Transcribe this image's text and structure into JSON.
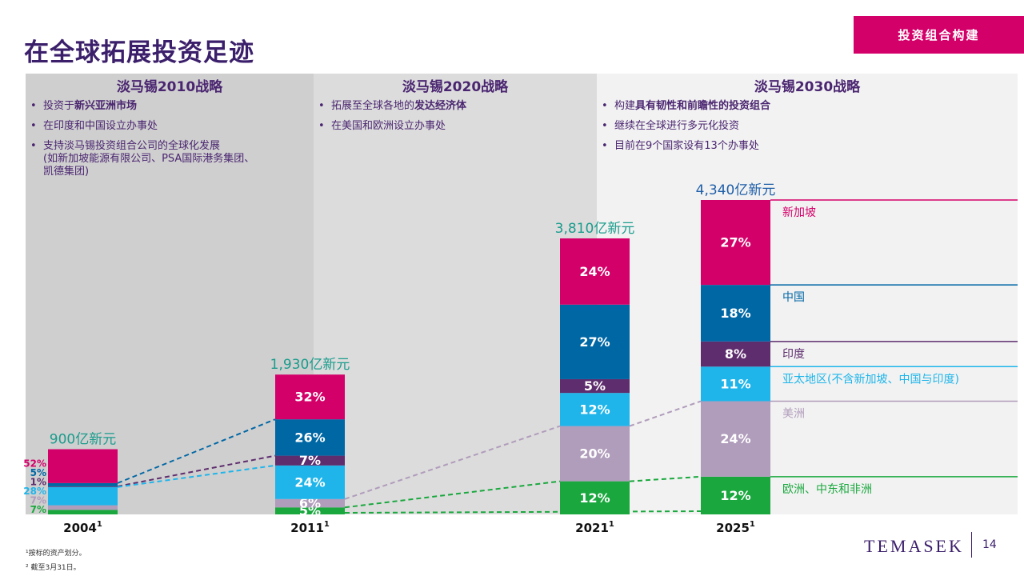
{
  "header": {
    "title": "在全球拓展投资足迹",
    "tag": "投资组合构建"
  },
  "panels": [
    {
      "title": "淡马锡2010战略",
      "bullets": [
        [
          [
            {
              "text": "投资于"
            },
            {
              "text": "新兴亚洲市场",
              "bold": true
            }
          ]
        ],
        [
          [
            {
              "text": "在印度和中国设立办事处"
            }
          ]
        ],
        [
          [
            {
              "text": "支持淡马锡投资组合公司的全球化发展"
            }
          ],
          [
            {
              "text": "(如新加坡能源有限公司、PSA国际港务集团、"
            }
          ],
          [
            {
              "text": "凯德集团)"
            }
          ]
        ]
      ]
    },
    {
      "title": "淡马锡2020战略",
      "bullets": [
        [
          [
            {
              "text": "拓展至全球各地的"
            },
            {
              "text": "发达经济体",
              "bold": true
            }
          ]
        ],
        [
          [
            {
              "text": "在美国和欧洲设立办事处"
            }
          ]
        ]
      ]
    },
    {
      "title": "淡马锡2030战略",
      "bullets": [
        [
          [
            {
              "text": "构建"
            },
            {
              "text": "具有韧性和前瞻性的投资组合",
              "bold": true
            }
          ]
        ],
        [
          [
            {
              "text": "继续在全球进行多元化投资"
            }
          ]
        ],
        [
          [
            {
              "text": "目前在9个国家设有13个办事处"
            }
          ]
        ]
      ]
    }
  ],
  "chart_data": {
    "type": "stacked_bar",
    "categories": [
      "2004",
      "2011",
      "2021",
      "2025"
    ],
    "category_note": "1",
    "totals": {
      "values": [
        900,
        1930,
        3810,
        4340
      ],
      "value_labels": [
        "900亿新元",
        "1,930亿新元",
        "3,810亿新元",
        "4,340亿新元"
      ],
      "colors": [
        "#1a9c8c",
        "#1a9c8c",
        "#1a9c8c",
        "#1f5fa8"
      ]
    },
    "series": [
      {
        "name": "新加坡",
        "color": "#d4006a",
        "values": [
          52,
          32,
          24,
          27
        ],
        "value_labels": [
          "52%",
          "32%",
          "24%",
          "27%"
        ]
      },
      {
        "name": "中国",
        "color": "#0067a5",
        "values": [
          5,
          26,
          27,
          18
        ],
        "value_labels": [
          "5%",
          "26%",
          "27%",
          "18%"
        ]
      },
      {
        "name": "印度",
        "color": "#5e2d6e",
        "values": [
          1,
          7,
          5,
          8
        ],
        "value_labels": [
          "1%",
          "7%",
          "5%",
          "8%"
        ]
      },
      {
        "name": "亚太地区(不含新加坡、中国与印度)",
        "color": "#1fb5ea",
        "values": [
          28,
          24,
          12,
          11
        ],
        "value_labels": [
          "28%",
          "24%",
          "12%",
          "11%"
        ]
      },
      {
        "name": "美洲",
        "color": "#b09cbb",
        "values": [
          7,
          6,
          20,
          24
        ],
        "value_labels": [
          "7%",
          "6%",
          "20%",
          "24%"
        ]
      },
      {
        "name": "欧洲、中东和非洲",
        "color": "#1aa83e",
        "values": [
          7,
          5,
          12,
          12
        ],
        "value_labels": [
          "7%",
          "5%",
          "12%",
          "12%"
        ]
      }
    ]
  },
  "footnotes": [
    "¹按标的资产划分。",
    "² 截至3月31日。"
  ],
  "logo": "TEMASEK",
  "page": "14"
}
